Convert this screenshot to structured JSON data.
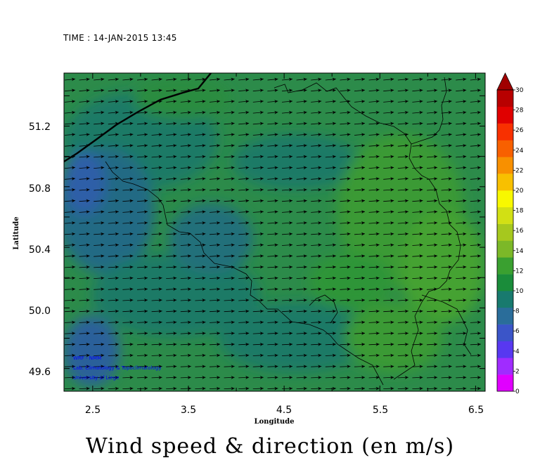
{
  "header": {
    "time_label": "TIME : 14-JAN-2015 13:45"
  },
  "title": "Wind speed & direction (en m/s)",
  "map": {
    "xlabel": "Longitude",
    "ylabel": "Latitude",
    "x_ticks": [
      "2.5",
      "3.5",
      "4.5",
      "5.5",
      "6.5"
    ],
    "y_ticks": [
      "51.2",
      "50.8",
      "50.4",
      "50.0",
      "49.6"
    ],
    "lon_range": [
      2.2,
      6.6
    ],
    "lat_range": [
      49.45,
      51.55
    ],
    "credits": [
      "WRF - NMM",
      "Lab. Climatology & Topoclimatology",
      "University of Liege"
    ],
    "credit_color": "#0000ff"
  },
  "colorbar": {
    "labels": [
      "0",
      "2",
      "4",
      "6",
      "8",
      "10",
      "12",
      "14",
      "16",
      "18",
      "20",
      "22",
      "24",
      "26",
      "28",
      "30"
    ],
    "colors": [
      "#e000ff",
      "#a02cff",
      "#5838f0",
      "#3b55c8",
      "#2a6d9a",
      "#187a6e",
      "#1a8c3a",
      "#3aa030",
      "#7cb828",
      "#a6c81e",
      "#d2e014",
      "#f8f800",
      "#f8c000",
      "#f89000",
      "#f86000",
      "#f83000",
      "#e00000",
      "#b80000"
    ]
  },
  "chart_data": {
    "type": "heatmap",
    "title": "Wind speed & direction (en m/s)",
    "xlabel": "Longitude",
    "ylabel": "Latitude",
    "xlim": [
      2.2,
      6.6
    ],
    "ylim": [
      49.45,
      51.55
    ],
    "color_range": [
      0,
      30
    ],
    "wind_direction_from": "west",
    "wind_speed_typical": [
      8,
      11
    ]
  }
}
